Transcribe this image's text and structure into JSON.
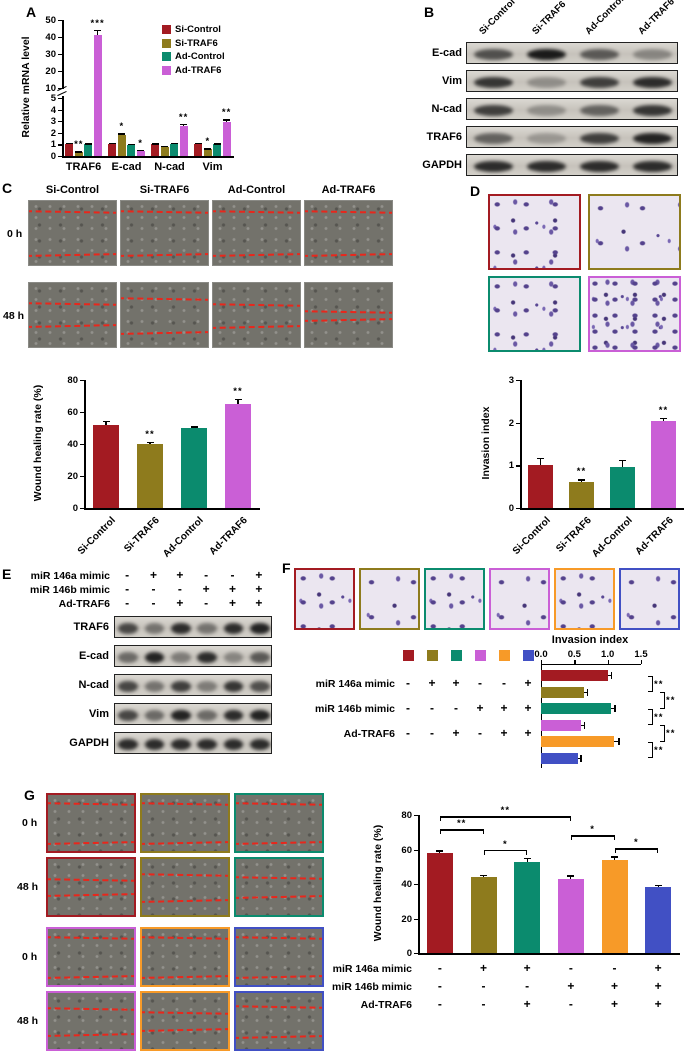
{
  "panels": {
    "a": "A",
    "b": "B",
    "c": "C",
    "d": "D",
    "e": "E",
    "f": "F",
    "g": "G"
  },
  "conditions4": [
    {
      "label": "Si-Control",
      "color": "#a31b22"
    },
    {
      "label": "Si-TRAF6",
      "color": "#8e7b1d"
    },
    {
      "label": "Ad-Control",
      "color": "#0b8b6e"
    },
    {
      "label": "Ad-TRAF6",
      "color": "#ca5fd6"
    }
  ],
  "conditions6_colors": [
    "#a31b22",
    "#8e7b1d",
    "#0b8b6e",
    "#ca5fd6",
    "#f79a28",
    "#4150c4"
  ],
  "treatments": {
    "rows": [
      "miR 146a mimic",
      "miR 146b mimic",
      "Ad-TRAF6"
    ],
    "matrix": [
      [
        "-",
        "+",
        "+",
        "-",
        "-",
        "+"
      ],
      [
        "-",
        "-",
        "-",
        "+",
        "+",
        "+"
      ],
      [
        "-",
        "-",
        "+",
        "-",
        "+",
        "+"
      ]
    ]
  },
  "panelB": {
    "lanes": [
      "Si-Control",
      "Si-TRAF6",
      "Ad-Control",
      "Ad-TRAF6"
    ],
    "rows": [
      {
        "label": "E-cad",
        "bands": [
          0.65,
          0.95,
          0.6,
          0.35
        ]
      },
      {
        "label": "Vim",
        "bands": [
          0.8,
          0.3,
          0.75,
          0.85
        ]
      },
      {
        "label": "N-cad",
        "bands": [
          0.75,
          0.3,
          0.55,
          0.8
        ]
      },
      {
        "label": "TRAF6",
        "bands": [
          0.55,
          0.25,
          0.75,
          0.9
        ]
      },
      {
        "label": "GAPDH",
        "bands": [
          0.85,
          0.85,
          0.85,
          0.85
        ]
      }
    ]
  },
  "panelC": {
    "columns": [
      "Si-Control",
      "Si-TRAF6",
      "Ad-Control",
      "Ad-TRAF6"
    ],
    "time_rows": [
      "0 h",
      "48 h"
    ]
  },
  "panelE": {
    "rows": [
      {
        "label": "TRAF6",
        "bands": [
          0.7,
          0.45,
          0.85,
          0.45,
          0.85,
          0.9
        ]
      },
      {
        "label": "E-cad",
        "bands": [
          0.5,
          0.9,
          0.4,
          0.85,
          0.35,
          0.6
        ]
      },
      {
        "label": "N-cad",
        "bands": [
          0.7,
          0.45,
          0.75,
          0.4,
          0.8,
          0.65
        ]
      },
      {
        "label": "Vim",
        "bands": [
          0.7,
          0.5,
          0.9,
          0.5,
          0.85,
          0.9
        ]
      },
      {
        "label": "GAPDH",
        "bands": [
          0.85,
          0.85,
          0.85,
          0.85,
          0.85,
          0.85
        ]
      }
    ]
  },
  "panelG": {
    "time_rows": [
      "0 h",
      "48 h"
    ]
  },
  "chart_data": [
    {
      "id": "A",
      "type": "bar",
      "ylabel": "Relative mRNA level",
      "categories": [
        "TRAF6",
        "E-cad",
        "N-cad",
        "Vim"
      ],
      "series": [
        {
          "name": "Si-Control",
          "values": [
            1.0,
            1.0,
            1.0,
            1.0
          ],
          "errors": [
            0.1,
            0.1,
            0.08,
            0.1
          ]
        },
        {
          "name": "Si-TRAF6",
          "values": [
            0.35,
            1.8,
            0.8,
            0.6
          ],
          "errors": [
            0.05,
            0.15,
            0.06,
            0.05
          ]
        },
        {
          "name": "Ad-Control",
          "values": [
            1.0,
            0.95,
            1.0,
            1.0
          ],
          "errors": [
            0.08,
            0.1,
            0.1,
            0.08
          ]
        },
        {
          "name": "Ad-TRAF6",
          "values": [
            41,
            0.45,
            2.6,
            2.9
          ],
          "errors": [
            3,
            0.05,
            0.2,
            0.25
          ]
        }
      ],
      "sig": [
        {
          "cat": 0,
          "ser": 1,
          "label": "**"
        },
        {
          "cat": 0,
          "ser": 3,
          "label": "***"
        },
        {
          "cat": 1,
          "ser": 1,
          "label": "*"
        },
        {
          "cat": 1,
          "ser": 3,
          "label": "*"
        },
        {
          "cat": 2,
          "ser": 3,
          "label": "**"
        },
        {
          "cat": 3,
          "ser": 1,
          "label": "*"
        },
        {
          "cat": 3,
          "ser": 3,
          "label": "**"
        }
      ],
      "broken_axis": {
        "lower": [
          0,
          5
        ],
        "upper": [
          10,
          50
        ],
        "lower_ticks": [
          0,
          1,
          2,
          3,
          4,
          5
        ],
        "upper_ticks": [
          10,
          20,
          30,
          40,
          50
        ]
      },
      "legend": [
        "Si-Control",
        "Si-TRAF6",
        "Ad-Control",
        "Ad-TRAF6"
      ],
      "legend_position": "top-right"
    },
    {
      "id": "C",
      "type": "bar",
      "ylabel": "Wound healing rate (%)",
      "categories": [
        "Si-Control",
        "Si-TRAF6",
        "Ad-Control",
        "Ad-TRAF6"
      ],
      "values": [
        52,
        40,
        50,
        65
      ],
      "errors": [
        2.5,
        1.5,
        1,
        3
      ],
      "sig": [
        "",
        "**",
        "",
        "**"
      ],
      "ylim": [
        0,
        80
      ],
      "yticks": [
        0,
        20,
        40,
        60,
        80
      ]
    },
    {
      "id": "D",
      "type": "bar",
      "ylabel": "Invasion index",
      "categories": [
        "Si-Control",
        "Si-TRAF6",
        "Ad-Control",
        "Ad-TRAF6"
      ],
      "values": [
        1.0,
        0.6,
        0.97,
        2.05
      ],
      "errors": [
        0.18,
        0.07,
        0.15,
        0.07
      ],
      "sig": [
        "",
        "**",
        "",
        "**"
      ],
      "ylim": [
        0,
        3
      ],
      "yticks": [
        0,
        1,
        2,
        3
      ]
    },
    {
      "id": "F",
      "type": "bar-horizontal",
      "title": "Invasion index",
      "values": [
        1.0,
        0.65,
        1.05,
        0.6,
        1.1,
        0.55
      ],
      "errors": [
        0.05,
        0.04,
        0.05,
        0.04,
        0.06,
        0.04
      ],
      "xlim": [
        0,
        1.5
      ],
      "xticks": [
        "0.0",
        "0.5",
        "1.0",
        "1.5"
      ],
      "brackets": [
        [
          0,
          1,
          "**",
          0
        ],
        [
          1,
          2,
          "**",
          1
        ],
        [
          2,
          3,
          "**",
          0
        ],
        [
          3,
          4,
          "**",
          1
        ],
        [
          4,
          5,
          "**",
          0
        ]
      ]
    },
    {
      "id": "G",
      "type": "bar",
      "ylabel": "Wound healing rate (%)",
      "values": [
        58,
        44,
        53,
        43,
        54,
        38
      ],
      "errors": [
        1.5,
        1.5,
        2,
        2,
        2,
        1.5
      ],
      "ylim": [
        0,
        80
      ],
      "yticks": [
        0,
        20,
        40,
        60,
        80
      ],
      "brackets": [
        [
          0,
          1,
          "**",
          1
        ],
        [
          1,
          2,
          "*",
          0
        ],
        [
          0,
          3,
          "**",
          2
        ],
        [
          3,
          4,
          "*",
          1
        ],
        [
          4,
          5,
          "*",
          0
        ]
      ]
    }
  ]
}
